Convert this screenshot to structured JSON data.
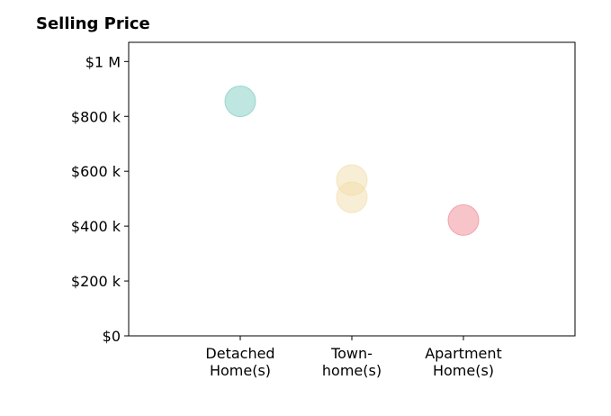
{
  "chart_data": {
    "type": "scatter",
    "title": "Selling Price",
    "xlabel": "",
    "ylabel": "",
    "categories": [
      [
        "Detached",
        "Home(s)"
      ],
      [
        "Town-",
        "home(s)"
      ],
      [
        "Apartment",
        "Home(s)"
      ]
    ],
    "ylim": [
      0,
      1070000
    ],
    "yticks": [
      {
        "value": 0,
        "label": "$0"
      },
      {
        "value": 200000,
        "label": "$200 k"
      },
      {
        "value": 400000,
        "label": "$400 k"
      },
      {
        "value": 600000,
        "label": "$600 k"
      },
      {
        "value": 800000,
        "label": "$800 k"
      },
      {
        "value": 1000000,
        "label": "$1 M"
      }
    ],
    "points": [
      {
        "category": 0,
        "value": 855000,
        "color": "#7fcdc1"
      },
      {
        "category": 1,
        "value": 568000,
        "color": "#f2deab"
      },
      {
        "category": 1,
        "value": 505000,
        "color": "#f2deab"
      },
      {
        "category": 2,
        "value": 422000,
        "color": "#f08a96"
      }
    ],
    "grid": false,
    "legend": "none"
  }
}
